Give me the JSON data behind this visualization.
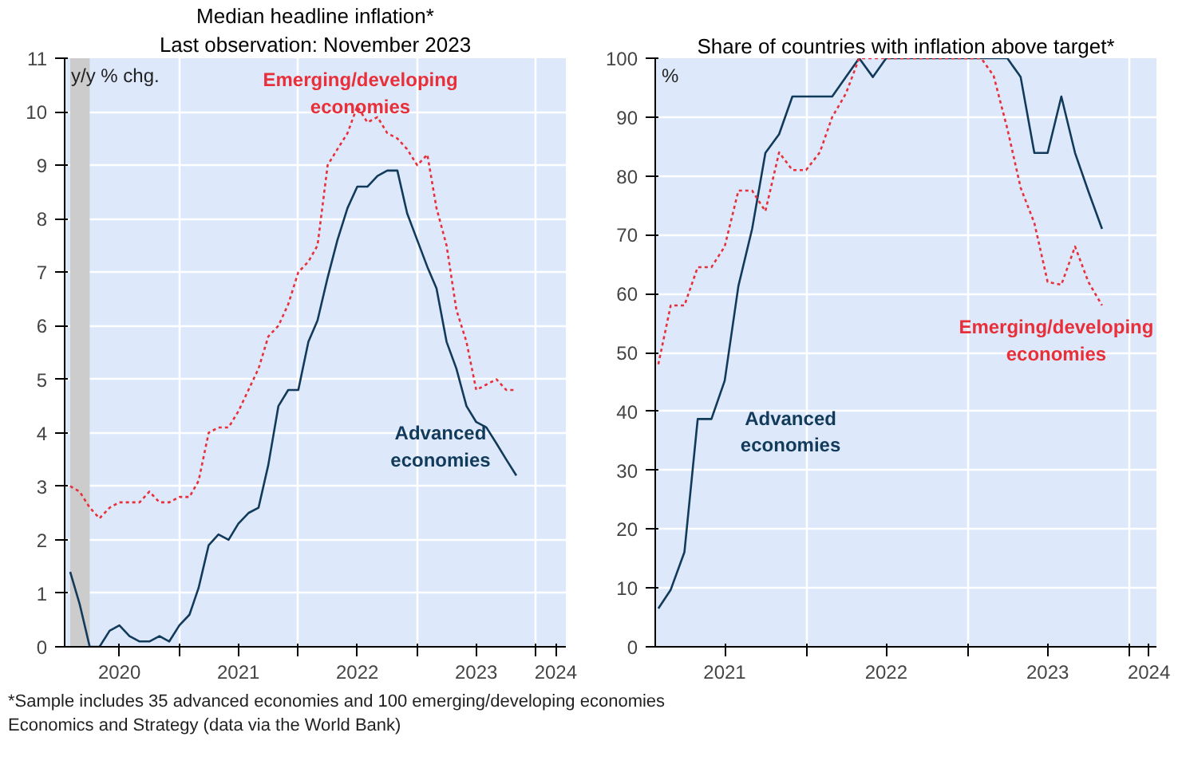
{
  "chart_data": [
    {
      "type": "line",
      "title": "Median headline inflation*",
      "subtitle": "Last observation: November 2023",
      "ylabel": "y/y % chg.",
      "x": [
        "2020-02",
        "2020-03",
        "2020-04",
        "2020-05",
        "2020-06",
        "2020-07",
        "2020-08",
        "2020-09",
        "2020-10",
        "2020-11",
        "2020-12",
        "2021-01",
        "2021-02",
        "2021-03",
        "2021-04",
        "2021-05",
        "2021-06",
        "2021-07",
        "2021-08",
        "2021-09",
        "2021-10",
        "2021-11",
        "2021-12",
        "2022-01",
        "2022-02",
        "2022-03",
        "2022-04",
        "2022-05",
        "2022-06",
        "2022-07",
        "2022-08",
        "2022-09",
        "2022-10",
        "2022-11",
        "2022-12",
        "2023-01",
        "2023-02",
        "2023-03",
        "2023-04",
        "2023-05",
        "2023-06",
        "2023-07",
        "2023-08",
        "2023-09",
        "2023-10",
        "2023-11"
      ],
      "series": [
        {
          "name": "Emerging/developing economies",
          "color": "#e8303a",
          "line_style": "dotted",
          "values": [
            3.0,
            2.9,
            2.6,
            2.4,
            2.6,
            2.7,
            2.7,
            2.7,
            2.9,
            2.7,
            2.7,
            2.8,
            2.8,
            3.1,
            4.0,
            4.1,
            4.1,
            4.4,
            4.8,
            5.2,
            5.8,
            6.0,
            6.4,
            7.0,
            7.2,
            7.5,
            9.0,
            9.3,
            9.6,
            10.1,
            9.8,
            9.9,
            9.6,
            9.5,
            9.3,
            9.0,
            9.2,
            8.2,
            7.5,
            6.3,
            5.7,
            4.8,
            4.9,
            5.0,
            4.8,
            4.8
          ]
        },
        {
          "name": "Advanced economies",
          "color": "#123a5a",
          "line_style": "solid",
          "values": [
            1.4,
            0.8,
            0.0,
            0.0,
            0.3,
            0.4,
            0.2,
            0.1,
            0.1,
            0.2,
            0.1,
            0.4,
            0.6,
            1.1,
            1.9,
            2.1,
            2.0,
            2.3,
            2.5,
            2.6,
            3.4,
            4.5,
            4.8,
            4.8,
            5.7,
            6.1,
            6.9,
            7.6,
            8.2,
            8.6,
            8.6,
            8.8,
            8.9,
            8.9,
            8.1,
            7.6,
            7.1,
            6.7,
            5.7,
            5.2,
            4.5,
            4.2,
            4.1,
            3.8,
            3.5,
            3.2
          ]
        }
      ],
      "xlim": [
        "2020-01-15",
        "2024-04-01"
      ],
      "ylim": [
        0,
        11
      ],
      "yticks": [
        0,
        1,
        2,
        3,
        4,
        5,
        6,
        7,
        8,
        9,
        10,
        11
      ],
      "xticks": [
        {
          "value": "2020-07-01",
          "label": "2020"
        },
        {
          "value": "2021-01-01",
          "label": null
        },
        {
          "value": "2021-07-01",
          "label": "2021"
        },
        {
          "value": "2022-01-01",
          "label": null
        },
        {
          "value": "2022-07-01",
          "label": "2022"
        },
        {
          "value": "2023-01-01",
          "label": null
        },
        {
          "value": "2023-07-01",
          "label": "2023"
        },
        {
          "value": "2024-01-01",
          "label": null
        },
        {
          "value": "2024-03-01",
          "label": "2024"
        }
      ],
      "bands": [
        {
          "axis": "x",
          "from": "2020-02-01",
          "to": "2020-04-01",
          "color": "#cccccc"
        }
      ],
      "grid": true,
      "annotations": [
        "*Sample includes 35 advanced economies and 100 emerging/developing economies",
        "Economics and Strategy (data via the World Bank)"
      ]
    },
    {
      "type": "line",
      "title": "Share of countries with inflation above target*",
      "ylabel": "%",
      "x": [
        "2021-02",
        "2021-03",
        "2021-04",
        "2021-05",
        "2021-06",
        "2021-07",
        "2021-08",
        "2021-09",
        "2021-10",
        "2021-11",
        "2021-12",
        "2022-01",
        "2022-02",
        "2022-03",
        "2022-04",
        "2022-05",
        "2022-06",
        "2022-07",
        "2022-08",
        "2022-09",
        "2022-10",
        "2022-11",
        "2022-12",
        "2023-01",
        "2023-02",
        "2023-03",
        "2023-04",
        "2023-05",
        "2023-06",
        "2023-07",
        "2023-08",
        "2023-09",
        "2023-10",
        "2023-11"
      ],
      "series": [
        {
          "name": "Advanced economies",
          "color": "#123a5a",
          "line_style": "solid",
          "values": [
            6.5,
            9.7,
            16.1,
            38.7,
            38.7,
            45.2,
            61.3,
            71,
            83.9,
            87.1,
            93.5,
            93.5,
            93.5,
            93.5,
            96.8,
            100,
            96.8,
            100,
            100,
            100,
            100,
            100,
            100,
            100,
            100,
            100,
            100,
            96.8,
            83.9,
            83.9,
            93.5,
            83.9,
            77.4,
            71.0
          ]
        },
        {
          "name": "Emerging/developing economies",
          "color": "#e8303a",
          "line_style": "dotted",
          "values": [
            48,
            58,
            58,
            64.5,
            64.5,
            68,
            77.5,
            77.5,
            74,
            84,
            81,
            81,
            84,
            90,
            94,
            100,
            100,
            100,
            100,
            100,
            100,
            100,
            100,
            100,
            100,
            97,
            88,
            78,
            72,
            62,
            61.5,
            68,
            62,
            58
          ]
        }
      ],
      "xlim": [
        "2021-01-25",
        "2024-03-03"
      ],
      "ylim": [
        0,
        100
      ],
      "yticks": [
        0,
        10,
        20,
        30,
        40,
        50,
        60,
        70,
        80,
        90,
        100
      ],
      "xticks": [
        {
          "value": "2021-07-01",
          "label": "2021"
        },
        {
          "value": "2022-01-01",
          "label": null
        },
        {
          "value": "2022-07-01",
          "label": "2022"
        },
        {
          "value": "2023-01-01",
          "label": null
        },
        {
          "value": "2023-07-01",
          "label": "2023"
        },
        {
          "value": "2024-01-01",
          "label": null
        },
        {
          "value": "2024-02-15",
          "label": "2024"
        }
      ],
      "grid": true
    }
  ]
}
